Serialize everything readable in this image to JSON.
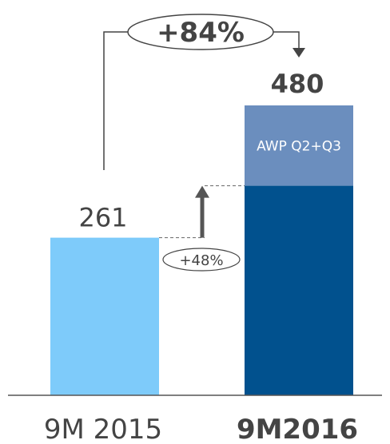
{
  "chart_data": {
    "type": "bar",
    "categories": [
      "9M 2015",
      "9M2016"
    ],
    "series": [
      {
        "values": [
          261,
          347
        ]
      },
      {
        "name": "AWP Q2+Q3",
        "values": [
          0,
          133
        ]
      }
    ],
    "totals": [
      261,
      480
    ],
    "total_labels": [
      "261",
      "480"
    ],
    "segment_label": "AWP Q2+Q3",
    "annotations": {
      "total_growth": "+84%",
      "organic_growth": "+48%"
    },
    "colors": {
      "bar_2015": "#7ecbfa",
      "bar_2016_base": "#01518e",
      "bar_2016_awp": "#6b8ebe",
      "axis": "#555555",
      "arrow": "#555555"
    },
    "ylim": [
      0,
      550
    ],
    "grid": false,
    "legend": "none"
  }
}
